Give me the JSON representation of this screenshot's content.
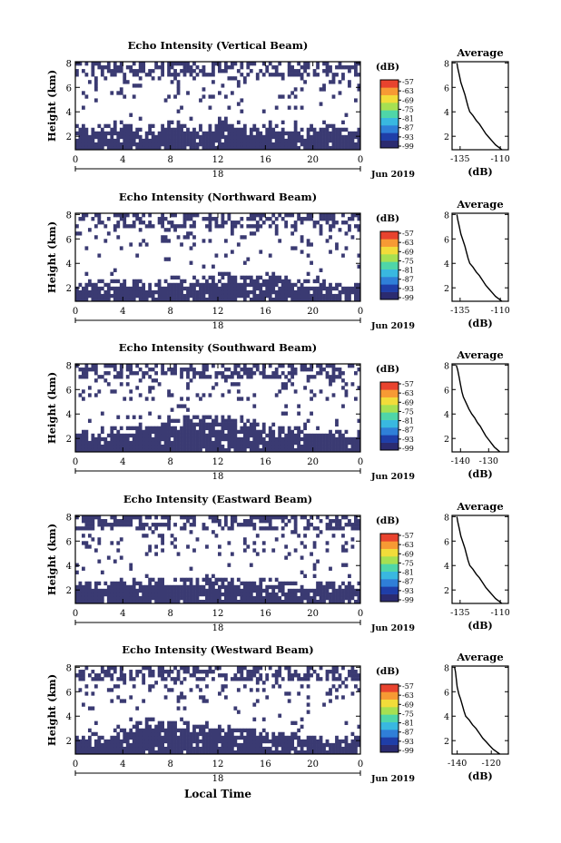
{
  "colorbar_unit": "(dB)",
  "colorbar_ticks": [
    "-57",
    "-63",
    "-69",
    "-75",
    "-81",
    "-87",
    "-93",
    "-99"
  ],
  "colorbar_colors": [
    "#2b2b70",
    "#1f3ea8",
    "#2f7fd8",
    "#39b8e0",
    "#4fd6a8",
    "#a6e052",
    "#f2dc3a",
    "#f79a34",
    "#e8432e"
  ],
  "echo_fill_color": "#3a3a72",
  "date_label": "Jun 2019",
  "x_axis_title": "Local Time",
  "chart_data": [
    {
      "type": "heatmap",
      "title": "Echo Intensity (Vertical Beam)",
      "ylabel": "Height (km)",
      "x_ticks": [
        "0",
        "4",
        "8",
        "12",
        "16",
        "20",
        "0"
      ],
      "xlim": [
        0,
        24
      ],
      "ylim": [
        0.9,
        8.1
      ],
      "y_ticks": [
        "2",
        "4",
        "6",
        "8"
      ],
      "day_label": "18",
      "echo_top_km": [
        2.6,
        2.4,
        2.6,
        3.0,
        2.8,
        2.5,
        2.6,
        2.7,
        2.9,
        2.7,
        2.8,
        2.6,
        3.2,
        2.9,
        2.7,
        2.6,
        2.8,
        2.7,
        2.6,
        2.5,
        2.4,
        2.6,
        2.5,
        2.4
      ],
      "average_profile": {
        "title": "Average",
        "xlabel": "(dB)",
        "x_ticks": [
          "-135",
          "-110"
        ],
        "xlim": [
          -140,
          -105
        ],
        "y_ticks": [
          "2",
          "4",
          "6",
          "8"
        ],
        "x": [
          -137,
          -136.5,
          -135.5,
          -134.5,
          -133,
          -132,
          -131,
          -130,
          -129,
          -127,
          -125,
          -123,
          -121,
          -119,
          -117,
          -115,
          -113,
          -111,
          -109
        ],
        "y": [
          8.0,
          7.6,
          7.0,
          6.4,
          5.8,
          5.4,
          4.9,
          4.4,
          4.0,
          3.7,
          3.3,
          3.0,
          2.6,
          2.2,
          1.9,
          1.6,
          1.3,
          1.1,
          0.9
        ]
      }
    },
    {
      "type": "heatmap",
      "title": "Echo Intensity (Northward Beam)",
      "ylabel": "Height (km)",
      "x_ticks": [
        "0",
        "4",
        "8",
        "12",
        "16",
        "20",
        "0"
      ],
      "xlim": [
        0,
        24
      ],
      "ylim": [
        0.9,
        8.1
      ],
      "y_ticks": [
        "2",
        "4",
        "6",
        "8"
      ],
      "day_label": "18",
      "echo_top_km": [
        2.2,
        2.0,
        2.3,
        2.5,
        2.4,
        2.3,
        2.2,
        2.4,
        2.6,
        2.5,
        2.7,
        2.6,
        2.9,
        2.7,
        2.6,
        2.8,
        2.9,
        2.7,
        2.5,
        2.4,
        2.3,
        2.2,
        2.1,
        2.0
      ],
      "average_profile": {
        "title": "Average",
        "xlabel": "(dB)",
        "x_ticks": [
          "-135",
          "-110"
        ],
        "xlim": [
          -140,
          -105
        ],
        "y_ticks": [
          "2",
          "4",
          "6",
          "8"
        ],
        "x": [
          -137,
          -136.5,
          -135.5,
          -134.5,
          -133,
          -132,
          -131,
          -130,
          -129,
          -127,
          -125,
          -123,
          -121,
          -119,
          -117,
          -115,
          -113,
          -111,
          -109
        ],
        "y": [
          8.0,
          7.6,
          7.0,
          6.4,
          5.8,
          5.4,
          4.9,
          4.4,
          4.0,
          3.7,
          3.3,
          3.0,
          2.6,
          2.2,
          1.9,
          1.6,
          1.3,
          1.1,
          0.9
        ]
      }
    },
    {
      "type": "heatmap",
      "title": "Echo Intensity (Southward Beam)",
      "ylabel": "Height (km)",
      "x_ticks": [
        "0",
        "4",
        "8",
        "12",
        "16",
        "20",
        "0"
      ],
      "xlim": [
        0,
        24
      ],
      "ylim": [
        0.9,
        8.1
      ],
      "y_ticks": [
        "2",
        "4",
        "6",
        "8"
      ],
      "day_label": "18",
      "echo_top_km": [
        2.3,
        2.2,
        2.4,
        2.6,
        2.8,
        3.0,
        3.2,
        3.3,
        3.4,
        3.5,
        3.5,
        3.6,
        3.6,
        3.4,
        3.2,
        3.0,
        2.9,
        2.8,
        2.7,
        2.6,
        2.6,
        2.5,
        2.5,
        2.4
      ],
      "average_profile": {
        "title": "Average",
        "xlabel": "(dB)",
        "x_ticks": [
          "-140",
          "-130"
        ],
        "xlim": [
          -143,
          -123
        ],
        "y_ticks": [
          "2",
          "4",
          "6",
          "8"
        ],
        "x": [
          -141.5,
          -141,
          -140.5,
          -140,
          -139.5,
          -139,
          -138,
          -137,
          -136,
          -135,
          -134,
          -133,
          -132,
          -131,
          -130,
          -129,
          -128,
          -127,
          -126
        ],
        "y": [
          8.0,
          7.6,
          7.0,
          6.4,
          5.8,
          5.4,
          4.9,
          4.4,
          4.0,
          3.7,
          3.3,
          3.0,
          2.6,
          2.2,
          1.9,
          1.6,
          1.3,
          1.1,
          0.9
        ]
      }
    },
    {
      "type": "heatmap",
      "title": "Echo Intensity (Eastward Beam)",
      "ylabel": "Height (km)",
      "x_ticks": [
        "0",
        "4",
        "8",
        "12",
        "16",
        "20",
        "0"
      ],
      "xlim": [
        0,
        24
      ],
      "ylim": [
        0.9,
        8.1
      ],
      "y_ticks": [
        "2",
        "4",
        "6",
        "8"
      ],
      "day_label": "18",
      "echo_top_km": [
        2.4,
        2.3,
        2.5,
        2.6,
        2.7,
        2.5,
        2.6,
        2.8,
        2.7,
        2.6,
        2.8,
        2.9,
        2.7,
        2.6,
        2.5,
        2.7,
        2.6,
        2.5,
        2.4,
        2.5,
        2.4,
        2.3,
        2.4,
        2.3
      ],
      "average_profile": {
        "title": "Average",
        "xlabel": "(dB)",
        "x_ticks": [
          "-135",
          "-110"
        ],
        "xlim": [
          -140,
          -105
        ],
        "y_ticks": [
          "2",
          "4",
          "6",
          "8"
        ],
        "x": [
          -137,
          -136.5,
          -135.5,
          -134.5,
          -133,
          -132,
          -131,
          -130,
          -129,
          -127,
          -125,
          -123,
          -121,
          -119,
          -117,
          -115,
          -113,
          -111,
          -109
        ],
        "y": [
          8.0,
          7.6,
          7.0,
          6.4,
          5.8,
          5.4,
          4.9,
          4.4,
          4.0,
          3.7,
          3.3,
          3.0,
          2.6,
          2.2,
          1.9,
          1.6,
          1.3,
          1.1,
          0.9
        ]
      }
    },
    {
      "type": "heatmap",
      "title": "Echo Intensity (Westward Beam)",
      "ylabel": "Height (km)",
      "x_ticks": [
        "0",
        "4",
        "8",
        "12",
        "16",
        "20",
        "0"
      ],
      "xlim": [
        0,
        24
      ],
      "ylim": [
        0.9,
        8.1
      ],
      "y_ticks": [
        "2",
        "4",
        "6",
        "8"
      ],
      "day_label": "18",
      "echo_top_km": [
        2.2,
        2.3,
        2.5,
        2.8,
        3.1,
        3.4,
        3.5,
        3.4,
        3.3,
        3.2,
        3.1,
        3.0,
        2.9,
        2.8,
        2.7,
        2.6,
        2.5,
        2.4,
        2.3,
        2.3,
        2.2,
        2.1,
        2.1,
        2.0
      ],
      "average_profile": {
        "title": "Average",
        "xlabel": "(dB)",
        "x_ticks": [
          "-140",
          "-120"
        ],
        "xlim": [
          -143,
          -110
        ],
        "y_ticks": [
          "2",
          "4",
          "6",
          "8"
        ],
        "x": [
          -141.5,
          -141,
          -140.5,
          -140,
          -139,
          -138,
          -137,
          -136,
          -135,
          -133,
          -131,
          -129,
          -127,
          -125,
          -123,
          -121,
          -119,
          -117,
          -115
        ],
        "y": [
          8.0,
          7.6,
          7.0,
          6.4,
          5.8,
          5.4,
          4.9,
          4.4,
          4.0,
          3.7,
          3.3,
          3.0,
          2.6,
          2.2,
          1.9,
          1.6,
          1.3,
          1.1,
          0.9
        ]
      }
    }
  ]
}
